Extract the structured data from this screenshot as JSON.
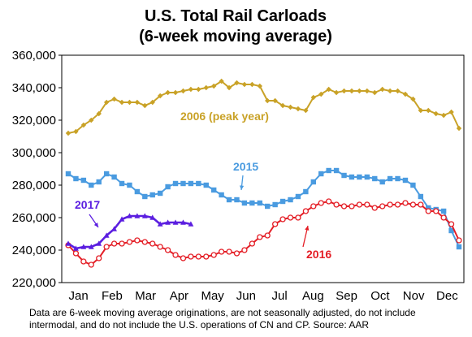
{
  "chart_data": {
    "type": "line",
    "title": "U.S. Total Rail Carloads",
    "subtitle": "(6-week moving average)",
    "xlabel": "",
    "ylabel": "",
    "ylim": [
      220000,
      360000
    ],
    "y_ticks": [
      "220,000",
      "240,000",
      "260,000",
      "280,000",
      "300,000",
      "320,000",
      "340,000",
      "360,000"
    ],
    "x_ticks": [
      "Jan",
      "Feb",
      "Mar",
      "Apr",
      "May",
      "Jun",
      "Jul",
      "Aug",
      "Sep",
      "Oct",
      "Nov",
      "Dec"
    ],
    "x_unit": "week of year",
    "grid": false,
    "series": [
      {
        "name": "2006 (peak year)",
        "color": "#C9A227",
        "marker": "diamond",
        "x": [
          1,
          2,
          3,
          4,
          5,
          6,
          7,
          8,
          9,
          10,
          11,
          12,
          13,
          14,
          15,
          16,
          17,
          18,
          19,
          20,
          21,
          22,
          23,
          24,
          25,
          26,
          27,
          28,
          29,
          30,
          31,
          32,
          33,
          34,
          35,
          36,
          37,
          38,
          39,
          40,
          41,
          42,
          43,
          44,
          45,
          46,
          47,
          48,
          49,
          50,
          51,
          52
        ],
        "values": [
          312000,
          313000,
          317000,
          320000,
          324000,
          331000,
          333000,
          331000,
          331000,
          331000,
          329000,
          331000,
          335000,
          337000,
          337000,
          338000,
          339000,
          339000,
          340000,
          341000,
          344000,
          340000,
          343000,
          342000,
          342000,
          341000,
          332000,
          332000,
          329000,
          328000,
          327000,
          326000,
          334000,
          336000,
          339000,
          337000,
          338000,
          338000,
          338000,
          338000,
          337000,
          339000,
          338000,
          338000,
          336000,
          333000,
          326000,
          326000,
          324000,
          323000,
          325000,
          315000
        ]
      },
      {
        "name": "2015",
        "color": "#4A9BE0",
        "marker": "square",
        "x": [
          1,
          2,
          3,
          4,
          5,
          6,
          7,
          8,
          9,
          10,
          11,
          12,
          13,
          14,
          15,
          16,
          17,
          18,
          19,
          20,
          21,
          22,
          23,
          24,
          25,
          26,
          27,
          28,
          29,
          30,
          31,
          32,
          33,
          34,
          35,
          36,
          37,
          38,
          39,
          40,
          41,
          42,
          43,
          44,
          45,
          46,
          47,
          48,
          49,
          50,
          51,
          52
        ],
        "values": [
          287000,
          284000,
          283000,
          280000,
          282000,
          287000,
          285000,
          281000,
          280000,
          276000,
          273000,
          274000,
          275000,
          279000,
          281000,
          281000,
          281000,
          281000,
          280000,
          277000,
          274000,
          271000,
          271000,
          269000,
          269000,
          269000,
          267000,
          268000,
          270000,
          271000,
          273000,
          276000,
          282000,
          287000,
          289000,
          289000,
          286000,
          285000,
          285000,
          285000,
          284000,
          282000,
          284000,
          284000,
          283000,
          280000,
          273000,
          266000,
          265000,
          264000,
          252000,
          242000
        ]
      },
      {
        "name": "2016",
        "color": "#E41E26",
        "marker": "circle",
        "x": [
          1,
          2,
          3,
          4,
          5,
          6,
          7,
          8,
          9,
          10,
          11,
          12,
          13,
          14,
          15,
          16,
          17,
          18,
          19,
          20,
          21,
          22,
          23,
          24,
          25,
          26,
          27,
          28,
          29,
          30,
          31,
          32,
          33,
          34,
          35,
          36,
          37,
          38,
          39,
          40,
          41,
          42,
          43,
          44,
          45,
          46,
          47,
          48,
          49,
          50,
          51,
          52
        ],
        "values": [
          243000,
          238000,
          233000,
          231000,
          235000,
          242000,
          244000,
          244000,
          245000,
          246000,
          245000,
          244000,
          242000,
          240000,
          237000,
          235000,
          236000,
          236000,
          236000,
          237000,
          239000,
          239000,
          238000,
          240000,
          244000,
          248000,
          249000,
          256000,
          259000,
          260000,
          260000,
          264000,
          267000,
          269000,
          270000,
          268000,
          267000,
          267000,
          268000,
          268000,
          266000,
          267000,
          268000,
          268000,
          269000,
          268000,
          268000,
          264000,
          264000,
          260000,
          256000,
          246000
        ]
      },
      {
        "name": "2017",
        "color": "#5B1EE0",
        "marker": "triangle",
        "x": [
          1,
          2,
          3,
          4,
          5,
          6,
          7,
          8,
          9,
          10,
          11,
          12,
          13,
          14,
          15,
          16,
          17
        ],
        "values": [
          244000,
          241000,
          242000,
          242000,
          244000,
          249000,
          253000,
          259000,
          261000,
          261000,
          261000,
          260000,
          256000,
          257000,
          257000,
          257000,
          256000
        ]
      }
    ],
    "annotations": [
      {
        "text": "2006 (peak year)",
        "series": "2006 (peak year)"
      },
      {
        "text": "2015",
        "series": "2015"
      },
      {
        "text": "2016",
        "series": "2016"
      },
      {
        "text": "2017",
        "series": "2017"
      }
    ],
    "footnote_line1": "Data are 6-week moving average originations, are not seasonally adjusted, do not include",
    "footnote_line2": "intermodal, and do not include the U.S. operations of CN and CP.   Source: AAR"
  }
}
